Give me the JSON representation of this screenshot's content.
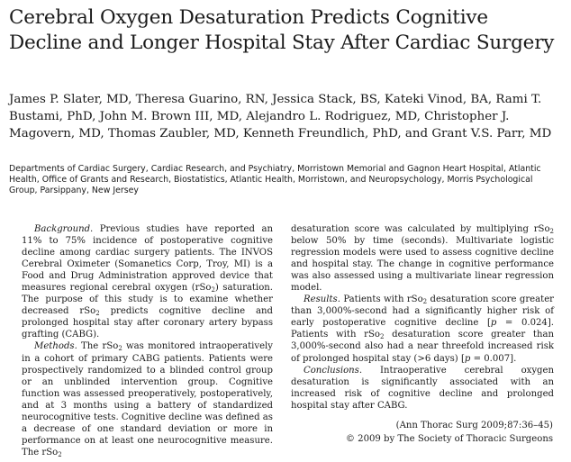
{
  "title": "Cerebral Oxygen Desaturation Predicts Cognitive Decline and Longer Hospital Stay After Cardiac Surgery",
  "authors": "James P. Slater, MD, Theresa Guarino, RN, Jessica Stack, BS, Kateki Vinod, BA, Rami T. Bustami, PhD, John M. Brown III, MD, Alejandro L. Rodriguez, MD, Christopher J. Magovern, MD, Thomas Zaubler, MD, Kenneth Freundlich, PhD, and Grant V.S. Parr, MD",
  "affiliations": "Departments of Cardiac Surgery, Cardiac Research, and Psychiatry, Morristown Memorial and Gagnon Heart Hospital, Atlantic Health, Office of Grants and Research, Biostatistics, Atlantic Health, Morristown, and Neuropsychology, Morris Psychological Group, Parsippany, New Jersey",
  "abstract": {
    "background": {
      "lead": "Background.",
      "t1": " Previous studies have reported an 11% to 75% incidence of postoperative cognitive decline among cardiac surgery patients. The INVOS Cerebral Oximeter (Somanetics Corp, Troy, MI) is a Food and Drug Administration approved device that measures regional cerebral oxygen (rSo",
      "sub1": "2",
      "t2": ") saturation. The purpose of this study is to examine whether decreased rSo",
      "sub2": "2",
      "t3": " predicts cognitive decline and prolonged hospital stay after coronary artery bypass grafting (CABG)."
    },
    "methods": {
      "lead": "Methods.",
      "t1": " The rSo",
      "sub1": "2",
      "t2": " was monitored intraoperatively in a cohort of primary CABG patients. Patients were prospectively randomized to a blinded control group or an unblinded intervention group. Cognitive function was assessed preoperatively, postoperatively, and at 3 months using a battery of standardized neurocognitive tests. Cognitive decline was defined as a decrease of one standard deviation or more in performance on at least one neurocognitive measure. The rSo",
      "sub2": "2",
      "t3": " desaturation score was calculated by multiplying rSo",
      "sub3": "2",
      "t4": " below 50% by time (seconds). Multivariate logistic regression models were used to assess cognitive decline and hospital stay. The change in cognitive performance was also assessed using a multivariate linear regression model."
    },
    "results": {
      "lead": "Results.",
      "t1": " Patients with rSo",
      "sub1": "2",
      "t2": " desaturation score greater than 3,000%-second had a significantly higher risk of early postoperative cognitive decline [",
      "p1": "p",
      "t3": " = 0.024]. Patients with rSo",
      "sub2": "2",
      "t4": " desaturation score greater than 3,000%-second also had a near threefold increased risk of prolonged hospital stay (>6 days) [",
      "p2": "p",
      "t5": " = 0.007]."
    },
    "conclusions": {
      "lead": "Conclusions.",
      "t1": " Intraoperative cerebral oxygen desaturation is significantly associated with an increased risk of cognitive decline and prolonged hospital stay after CABG."
    }
  },
  "citation": {
    "journal": "(Ann Thorac Surg 2009;87:36–45)",
    "copyright": "© 2009 by The Society of Thoracic Surgeons"
  }
}
